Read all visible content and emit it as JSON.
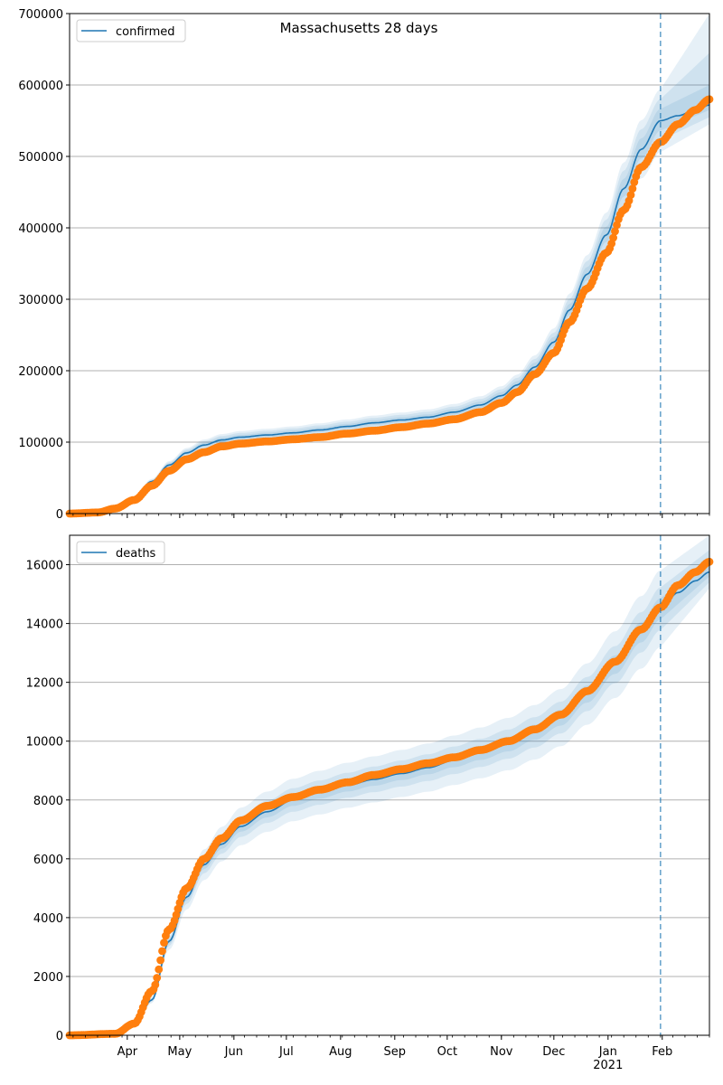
{
  "title": "Massachusetts 28 days",
  "colors": {
    "model": "#1f77b4",
    "observed": "#ff7f0e",
    "band": "#1f77b4",
    "grid": "#b0b0b0"
  },
  "chart_data": [
    {
      "type": "line",
      "legend": "confirmed",
      "legend_position": "top-left",
      "grid": "horizontal",
      "x_range": [
        "2020-02-28",
        "2021-02-28"
      ],
      "ylim": [
        0,
        700000
      ],
      "yticks": [
        0,
        100000,
        200000,
        300000,
        400000,
        500000,
        600000,
        700000
      ],
      "yticklabels": [
        "0",
        "100000",
        "200000",
        "300000",
        "400000",
        "500000",
        "600000",
        "700000"
      ],
      "forecast_start": "2021-01-31",
      "model_curve": [
        [
          "2020-02-28",
          0
        ],
        [
          "2020-03-15",
          1500
        ],
        [
          "2020-03-25",
          8000
        ],
        [
          "2020-04-05",
          22000
        ],
        [
          "2020-04-15",
          45000
        ],
        [
          "2020-04-25",
          68000
        ],
        [
          "2020-05-05",
          85000
        ],
        [
          "2020-05-15",
          96000
        ],
        [
          "2020-05-25",
          103000
        ],
        [
          "2020-06-05",
          107000
        ],
        [
          "2020-06-20",
          110000
        ],
        [
          "2020-07-05",
          113000
        ],
        [
          "2020-07-20",
          117000
        ],
        [
          "2020-08-05",
          122000
        ],
        [
          "2020-08-20",
          127000
        ],
        [
          "2020-09-05",
          131000
        ],
        [
          "2020-09-20",
          135000
        ],
        [
          "2020-10-05",
          142000
        ],
        [
          "2020-10-20",
          152000
        ],
        [
          "2020-11-01",
          165000
        ],
        [
          "2020-11-10",
          180000
        ],
        [
          "2020-11-20",
          205000
        ],
        [
          "2020-12-01",
          240000
        ],
        [
          "2020-12-10",
          285000
        ],
        [
          "2020-12-20",
          335000
        ],
        [
          "2020-12-31",
          390000
        ],
        [
          "2021-01-10",
          455000
        ],
        [
          "2021-01-20",
          510000
        ],
        [
          "2021-01-31",
          550000
        ],
        [
          "2021-02-10",
          557000
        ],
        [
          "2021-02-20",
          565000
        ],
        [
          "2021-02-28",
          572000
        ]
      ],
      "observed": [
        [
          "2020-02-28",
          0
        ],
        [
          "2020-03-15",
          1500
        ],
        [
          "2020-03-25",
          7000
        ],
        [
          "2020-04-05",
          19000
        ],
        [
          "2020-04-15",
          39000
        ],
        [
          "2020-04-25",
          60000
        ],
        [
          "2020-05-05",
          76000
        ],
        [
          "2020-05-15",
          86000
        ],
        [
          "2020-05-25",
          94000
        ],
        [
          "2020-06-05",
          98000
        ],
        [
          "2020-06-20",
          101000
        ],
        [
          "2020-07-05",
          104000
        ],
        [
          "2020-07-20",
          107000
        ],
        [
          "2020-08-05",
          112000
        ],
        [
          "2020-08-20",
          116000
        ],
        [
          "2020-09-05",
          121000
        ],
        [
          "2020-09-20",
          126000
        ],
        [
          "2020-10-05",
          132000
        ],
        [
          "2020-10-20",
          142000
        ],
        [
          "2020-11-01",
          155000
        ],
        [
          "2020-11-10",
          170000
        ],
        [
          "2020-11-20",
          195000
        ],
        [
          "2020-12-01",
          225000
        ],
        [
          "2020-12-10",
          268000
        ],
        [
          "2020-12-20",
          315000
        ],
        [
          "2020-12-31",
          365000
        ],
        [
          "2021-01-10",
          425000
        ],
        [
          "2021-01-20",
          485000
        ],
        [
          "2021-01-31",
          520000
        ],
        [
          "2021-02-10",
          545000
        ],
        [
          "2021-02-20",
          565000
        ],
        [
          "2021-02-28",
          580000
        ]
      ],
      "bands": [
        {
          "lower_ratio": 0.92,
          "upper_ratio": 1.08,
          "forecast_lower": 545000,
          "forecast_upper": 700000
        },
        {
          "lower_ratio": 0.95,
          "upper_ratio": 1.055,
          "forecast_lower": 555000,
          "forecast_upper": 645000
        },
        {
          "lower_ratio": 0.975,
          "upper_ratio": 1.03,
          "forecast_lower": 565000,
          "forecast_upper": 600000
        }
      ]
    },
    {
      "type": "line",
      "legend": "deaths",
      "legend_position": "top-left",
      "grid": "horizontal",
      "x_range": [
        "2020-02-28",
        "2021-02-28"
      ],
      "ylim": [
        0,
        17000
      ],
      "yticks": [
        0,
        2000,
        4000,
        6000,
        8000,
        10000,
        12000,
        14000,
        16000
      ],
      "yticklabels": [
        "0",
        "2000",
        "4000",
        "6000",
        "8000",
        "10000",
        "12000",
        "14000",
        "16000"
      ],
      "xticks": [
        "2020-04-01",
        "2020-05-01",
        "2020-06-01",
        "2020-07-01",
        "2020-08-01",
        "2020-09-01",
        "2020-10-01",
        "2020-11-01",
        "2020-12-01",
        "2021-01-01",
        "2021-02-01"
      ],
      "xticklabels": [
        "Apr",
        "May",
        "Jun",
        "Jul",
        "Aug",
        "Sep",
        "Oct",
        "Nov",
        "Dec",
        "Jan",
        "Feb"
      ],
      "year_label": "2021",
      "forecast_start": "2021-01-31",
      "model_curve": [
        [
          "2020-02-28",
          0
        ],
        [
          "2020-03-25",
          50
        ],
        [
          "2020-04-05",
          300
        ],
        [
          "2020-04-15",
          1200
        ],
        [
          "2020-04-25",
          3200
        ],
        [
          "2020-05-05",
          4700
        ],
        [
          "2020-05-15",
          5800
        ],
        [
          "2020-05-25",
          6500
        ],
        [
          "2020-06-05",
          7100
        ],
        [
          "2020-06-20",
          7600
        ],
        [
          "2020-07-05",
          8000
        ],
        [
          "2020-07-20",
          8250
        ],
        [
          "2020-08-05",
          8500
        ],
        [
          "2020-08-20",
          8700
        ],
        [
          "2020-09-05",
          8900
        ],
        [
          "2020-09-20",
          9100
        ],
        [
          "2020-10-05",
          9350
        ],
        [
          "2020-10-20",
          9600
        ],
        [
          "2020-11-05",
          9900
        ],
        [
          "2020-11-20",
          10300
        ],
        [
          "2020-12-05",
          10800
        ],
        [
          "2020-12-20",
          11600
        ],
        [
          "2021-01-05",
          12600
        ],
        [
          "2021-01-20",
          13700
        ],
        [
          "2021-01-31",
          14500
        ],
        [
          "2021-02-10",
          15050
        ],
        [
          "2021-02-20",
          15450
        ],
        [
          "2021-02-28",
          15750
        ]
      ],
      "observed": [
        [
          "2020-02-28",
          0
        ],
        [
          "2020-03-25",
          50
        ],
        [
          "2020-04-05",
          400
        ],
        [
          "2020-04-15",
          1500
        ],
        [
          "2020-04-25",
          3600
        ],
        [
          "2020-05-05",
          5000
        ],
        [
          "2020-05-15",
          6000
        ],
        [
          "2020-05-25",
          6700
        ],
        [
          "2020-06-05",
          7300
        ],
        [
          "2020-06-20",
          7800
        ],
        [
          "2020-07-05",
          8100
        ],
        [
          "2020-07-20",
          8350
        ],
        [
          "2020-08-05",
          8600
        ],
        [
          "2020-08-20",
          8850
        ],
        [
          "2020-09-05",
          9050
        ],
        [
          "2020-09-20",
          9250
        ],
        [
          "2020-10-05",
          9450
        ],
        [
          "2020-10-20",
          9700
        ],
        [
          "2020-11-05",
          10000
        ],
        [
          "2020-11-20",
          10400
        ],
        [
          "2020-12-05",
          10900
        ],
        [
          "2020-12-20",
          11700
        ],
        [
          "2021-01-05",
          12700
        ],
        [
          "2021-01-20",
          13800
        ],
        [
          "2021-01-31",
          14550
        ],
        [
          "2021-02-10",
          15300
        ],
        [
          "2021-02-20",
          15750
        ],
        [
          "2021-02-28",
          16100
        ]
      ],
      "bands": [
        {
          "lower_ratio": 0.91,
          "upper_ratio": 1.09,
          "forecast_lower": 15200,
          "forecast_upper": 17000
        },
        {
          "lower_ratio": 0.95,
          "upper_ratio": 1.05,
          "forecast_lower": 15400,
          "forecast_upper": 16500
        },
        {
          "lower_ratio": 0.975,
          "upper_ratio": 1.025,
          "forecast_lower": 15600,
          "forecast_upper": 16100
        }
      ]
    }
  ]
}
